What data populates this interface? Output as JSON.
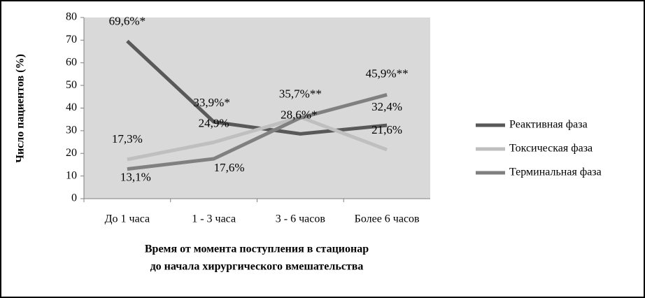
{
  "chart_data": {
    "type": "line",
    "categories": [
      "До 1 часа",
      "1 - 3 часа",
      "3 - 6 часов",
      "Более 6 часов"
    ],
    "series": [
      {
        "name": "Реактивная фаза",
        "color": "#595959",
        "values": [
          69.6,
          33.9,
          28.6,
          32.4
        ],
        "value_labels": [
          "69,6%*",
          "33,9%*",
          "28,6%*",
          "32,4%"
        ]
      },
      {
        "name": "Токсическая фаза",
        "color": "#bfbfbf",
        "values": [
          17.3,
          24.9,
          36,
          21.6
        ],
        "value_labels": [
          "17,3%",
          "24,9%",
          null,
          "21,6%"
        ]
      },
      {
        "name": "Терминальная фаза",
        "color": "#808080",
        "values": [
          13.1,
          17.6,
          35.7,
          45.9
        ],
        "value_labels": [
          "13,1%",
          "17,6%",
          "35,7%**",
          "45,9%**"
        ]
      }
    ],
    "ylim": [
      0,
      80
    ],
    "yticks": [
      0,
      10,
      20,
      30,
      40,
      50,
      60,
      70,
      80
    ],
    "y_label": "Число пациентов (%)",
    "x_label": [
      "Время от момента поступления в стационар",
      "до начала хирургического вмешательства"
    ],
    "grid": false,
    "legend": "right"
  }
}
